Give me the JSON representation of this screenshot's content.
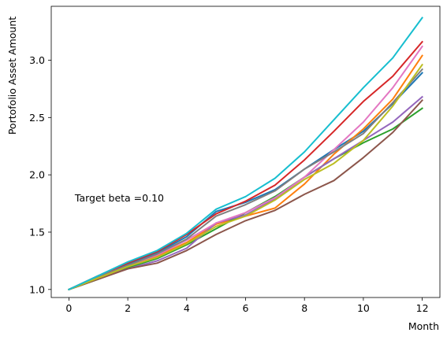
{
  "chart_data": {
    "type": "line",
    "title": "",
    "xlabel": "Month",
    "ylabel": "Portofolio Asset Amount",
    "xlim": [
      -0.6,
      12.6
    ],
    "ylim": [
      0.93,
      3.47
    ],
    "xticks": [
      0,
      2,
      4,
      6,
      8,
      10,
      12
    ],
    "xtick_labels": [
      "0",
      "2",
      "4",
      "6",
      "8",
      "10",
      "12"
    ],
    "yticks": [
      1.0,
      1.5,
      2.0,
      2.5,
      3.0
    ],
    "ytick_labels": [
      "1.0",
      "1.5",
      "2.0",
      "2.5",
      "3.0"
    ],
    "grid": false,
    "annotation": {
      "text": "Target beta =0.10",
      "x": 0.2,
      "y": 1.8
    },
    "x": [
      0,
      1,
      2,
      3,
      4,
      5,
      6,
      7,
      8,
      9,
      10,
      11,
      12
    ],
    "series": [
      {
        "color": "#1f77b4",
        "values": [
          1.0,
          1.11,
          1.22,
          1.32,
          1.46,
          1.68,
          1.76,
          1.87,
          2.05,
          2.22,
          2.38,
          2.62,
          2.89
        ]
      },
      {
        "color": "#ff7f0e",
        "values": [
          1.0,
          1.1,
          1.2,
          1.29,
          1.41,
          1.57,
          1.64,
          1.71,
          1.92,
          2.18,
          2.4,
          2.66,
          3.04
        ]
      },
      {
        "color": "#2ca02c",
        "values": [
          1.0,
          1.09,
          1.19,
          1.27,
          1.39,
          1.53,
          1.67,
          1.81,
          1.98,
          2.14,
          2.28,
          2.4,
          2.58
        ]
      },
      {
        "color": "#d62728",
        "values": [
          1.0,
          1.12,
          1.23,
          1.33,
          1.48,
          1.66,
          1.77,
          1.91,
          2.13,
          2.38,
          2.64,
          2.86,
          3.16
        ]
      },
      {
        "color": "#9467bd",
        "values": [
          1.0,
          1.1,
          1.18,
          1.25,
          1.36,
          1.58,
          1.65,
          1.79,
          1.98,
          2.14,
          2.3,
          2.46,
          2.68
        ]
      },
      {
        "color": "#8c564b",
        "values": [
          1.0,
          1.09,
          1.18,
          1.23,
          1.34,
          1.48,
          1.6,
          1.69,
          1.83,
          1.95,
          2.15,
          2.37,
          2.65
        ]
      },
      {
        "color": "#e377c2",
        "values": [
          1.0,
          1.11,
          1.21,
          1.3,
          1.43,
          1.58,
          1.67,
          1.8,
          1.98,
          2.22,
          2.46,
          2.76,
          3.12
        ]
      },
      {
        "color": "#7f7f7f",
        "values": [
          1.0,
          1.11,
          1.21,
          1.31,
          1.44,
          1.64,
          1.74,
          1.86,
          2.05,
          2.2,
          2.36,
          2.63,
          2.92
        ]
      },
      {
        "color": "#bcbd22",
        "values": [
          1.0,
          1.1,
          1.2,
          1.28,
          1.4,
          1.55,
          1.64,
          1.78,
          1.96,
          2.1,
          2.3,
          2.6,
          2.96
        ]
      },
      {
        "color": "#17becf",
        "values": [
          1.0,
          1.12,
          1.24,
          1.34,
          1.49,
          1.7,
          1.81,
          1.97,
          2.2,
          2.48,
          2.76,
          3.02,
          3.37
        ]
      }
    ]
  }
}
